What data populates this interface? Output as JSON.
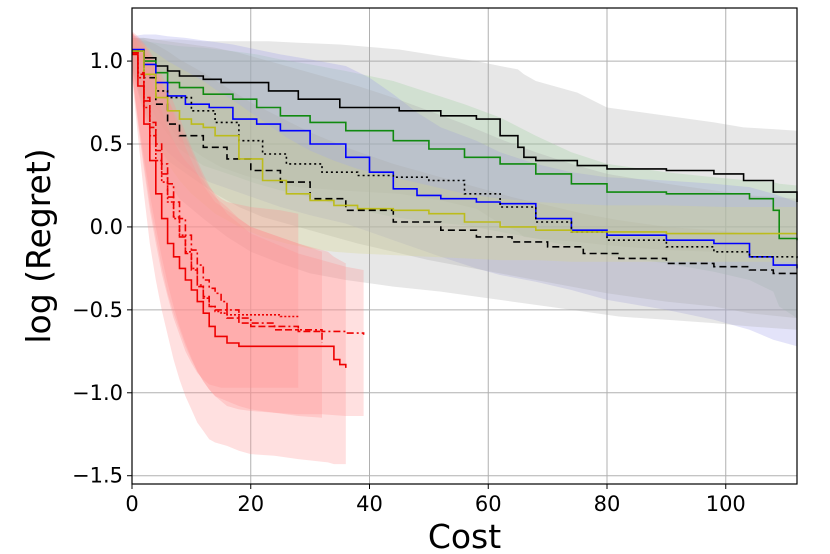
{
  "chart_data": {
    "type": "line",
    "title": "",
    "xlabel": "Cost",
    "ylabel": "log (Regret)",
    "xlim": [
      0,
      112
    ],
    "ylim": [
      -1.55,
      1.32
    ],
    "xticks": [
      0,
      20,
      40,
      60,
      80,
      100
    ],
    "yticks": [
      1.0,
      0.5,
      0.0,
      -0.5,
      -1.0,
      -1.5
    ],
    "xtick_labels": [
      "0",
      "20",
      "40",
      "60",
      "80",
      "100"
    ],
    "ytick_labels": [
      "1.0",
      "0.5",
      "0.0",
      "−0.5",
      "−1.0",
      "−1.5"
    ],
    "grid": true,
    "series": [
      {
        "name": "black-solid",
        "color": "#000000",
        "dash": "solid",
        "band_color": "#a8a8a8",
        "x": [
          0,
          2,
          4,
          6,
          8,
          12,
          15,
          19,
          23,
          28,
          35,
          45,
          52,
          58,
          62,
          65,
          66,
          68,
          75,
          80,
          90,
          98,
          103,
          108,
          112
        ],
        "y": [
          1.06,
          1.02,
          0.97,
          0.94,
          0.91,
          0.89,
          0.87,
          0.87,
          0.82,
          0.77,
          0.72,
          0.7,
          0.67,
          0.65,
          0.55,
          0.48,
          0.42,
          0.4,
          0.37,
          0.35,
          0.34,
          0.32,
          0.28,
          0.21,
          0.15
        ],
        "lower": [
          0.97,
          0.85,
          0.72,
          0.62,
          0.52,
          0.42,
          0.36,
          0.31,
          0.27,
          0.24,
          0.22,
          0.2,
          0.16,
          0.11,
          0.02,
          -0.03,
          -0.06,
          -0.07,
          -0.09,
          -0.11,
          -0.14,
          -0.15,
          -0.16,
          -0.17,
          -0.18
        ],
        "upper": [
          1.14,
          1.14,
          1.13,
          1.13,
          1.13,
          1.12,
          1.12,
          1.12,
          1.12,
          1.11,
          1.1,
          1.07,
          1.03,
          1.0,
          0.97,
          0.95,
          0.92,
          0.88,
          0.81,
          0.72,
          0.67,
          0.63,
          0.6,
          0.59,
          0.58
        ]
      },
      {
        "name": "green-solid",
        "color": "#108a10",
        "dash": "solid",
        "band_color": "#9acf9a",
        "x": [
          0,
          2,
          4,
          6,
          8,
          12,
          17,
          21,
          25,
          30,
          36,
          44,
          50,
          56,
          62,
          68,
          74,
          80,
          90,
          98,
          104,
          108,
          109,
          112
        ],
        "y": [
          1.06,
          1.0,
          0.93,
          0.87,
          0.84,
          0.8,
          0.77,
          0.72,
          0.67,
          0.63,
          0.58,
          0.52,
          0.47,
          0.42,
          0.38,
          0.32,
          0.26,
          0.21,
          0.2,
          0.2,
          0.17,
          0.1,
          -0.07,
          -0.08
        ],
        "lower": [
          0.96,
          0.82,
          0.66,
          0.56,
          0.47,
          0.37,
          0.31,
          0.26,
          0.22,
          0.18,
          0.12,
          0.06,
          0.03,
          0.01,
          -0.03,
          -0.07,
          -0.12,
          -0.17,
          -0.22,
          -0.27,
          -0.32,
          -0.39,
          -0.48,
          -0.55
        ],
        "upper": [
          1.13,
          1.12,
          1.11,
          1.1,
          1.09,
          1.08,
          1.06,
          1.04,
          1.01,
          0.98,
          0.94,
          0.88,
          0.81,
          0.74,
          0.66,
          0.55,
          0.45,
          0.38,
          0.33,
          0.3,
          0.28,
          0.27,
          0.26,
          0.25
        ]
      },
      {
        "name": "blue-solid",
        "color": "#0000ff",
        "dash": "solid",
        "band_color": "#9c9ce8",
        "x": [
          0,
          2,
          4,
          6,
          9,
          13,
          17,
          21,
          25,
          30,
          36,
          40,
          44,
          48,
          52,
          58,
          62,
          68,
          74,
          80,
          90,
          98,
          104,
          108,
          112
        ],
        "y": [
          1.07,
          0.98,
          0.87,
          0.79,
          0.74,
          0.72,
          0.65,
          0.62,
          0.58,
          0.5,
          0.42,
          0.33,
          0.23,
          0.19,
          0.17,
          0.15,
          0.14,
          0.05,
          -0.02,
          -0.05,
          -0.08,
          -0.1,
          -0.18,
          -0.23,
          -0.25
        ],
        "lower": [
          0.96,
          0.74,
          0.55,
          0.45,
          0.36,
          0.27,
          0.22,
          0.17,
          0.12,
          0.07,
          0.02,
          -0.03,
          -0.08,
          -0.13,
          -0.18,
          -0.25,
          -0.29,
          -0.33,
          -0.38,
          -0.44,
          -0.5,
          -0.56,
          -0.62,
          -0.68,
          -0.72
        ],
        "upper": [
          1.15,
          1.16,
          1.16,
          1.15,
          1.14,
          1.12,
          1.1,
          1.07,
          1.04,
          1.01,
          0.97,
          0.9,
          0.8,
          0.69,
          0.6,
          0.52,
          0.45,
          0.38,
          0.33,
          0.3,
          0.28,
          0.26,
          0.24,
          0.2,
          0.15
        ]
      },
      {
        "name": "black-dotted",
        "color": "#000000",
        "dash": "2,3",
        "band_color": "#a8a8a8",
        "x": [
          0,
          2,
          4,
          6,
          10,
          14,
          18,
          22,
          26,
          32,
          38,
          44,
          50,
          56,
          62,
          68,
          74,
          80,
          90,
          98,
          104,
          112
        ],
        "y": [
          1.06,
          0.92,
          0.82,
          0.78,
          0.7,
          0.63,
          0.52,
          0.44,
          0.38,
          0.33,
          0.31,
          0.3,
          0.28,
          0.2,
          0.12,
          0.03,
          -0.03,
          -0.08,
          -0.12,
          -0.15,
          -0.18,
          -0.2
        ],
        "lower": [
          0.95,
          0.7,
          0.52,
          0.4,
          0.3,
          0.2,
          0.12,
          0.06,
          0.02,
          -0.04,
          -0.1,
          -0.15,
          -0.2,
          -0.24,
          -0.28,
          -0.32,
          -0.36,
          -0.4,
          -0.45,
          -0.48,
          -0.52,
          -0.55
        ],
        "upper": [
          1.14,
          1.14,
          1.13,
          1.12,
          1.1,
          1.08,
          1.05,
          1.01,
          0.97,
          0.91,
          0.85,
          0.78,
          0.7,
          0.62,
          0.53,
          0.45,
          0.38,
          0.32,
          0.26,
          0.22,
          0.19,
          0.17
        ]
      },
      {
        "name": "black-dashed",
        "color": "#000000",
        "dash": "7,4",
        "band_color": "#a8a8a8",
        "x": [
          0,
          2,
          4,
          6,
          8,
          12,
          16,
          20,
          25,
          30,
          36,
          44,
          52,
          58,
          64,
          70,
          76,
          82,
          90,
          98,
          104,
          108,
          112
        ],
        "y": [
          1.06,
          0.9,
          0.74,
          0.62,
          0.55,
          0.48,
          0.41,
          0.34,
          0.27,
          0.17,
          0.1,
          0.03,
          -0.02,
          -0.06,
          -0.09,
          -0.12,
          -0.16,
          -0.19,
          -0.22,
          -0.24,
          -0.26,
          -0.28,
          -0.28
        ],
        "lower": [
          0.94,
          0.68,
          0.44,
          0.28,
          0.17,
          0.05,
          -0.06,
          -0.15,
          -0.22,
          -0.28,
          -0.32,
          -0.36,
          -0.39,
          -0.42,
          -0.45,
          -0.48,
          -0.51,
          -0.54,
          -0.56,
          -0.58,
          -0.6,
          -0.61,
          -0.62
        ],
        "upper": [
          1.14,
          1.13,
          1.1,
          1.06,
          1.01,
          0.93,
          0.84,
          0.75,
          0.66,
          0.57,
          0.48,
          0.38,
          0.3,
          0.24,
          0.18,
          0.13,
          0.08,
          0.04,
          0.0,
          -0.02,
          -0.04,
          -0.05,
          -0.06
        ]
      },
      {
        "name": "yellow-solid",
        "color": "#bcbc1c",
        "dash": "solid",
        "band_color": "#d6d68a",
        "x": [
          0,
          2,
          4,
          6,
          8,
          10,
          12,
          14,
          18,
          22,
          26,
          30,
          34,
          38,
          44,
          50,
          56,
          62,
          68,
          74,
          80,
          90,
          100,
          112
        ],
        "y": [
          1.06,
          0.92,
          0.78,
          0.7,
          0.65,
          0.62,
          0.6,
          0.55,
          0.41,
          0.28,
          0.2,
          0.16,
          0.13,
          0.11,
          0.1,
          0.08,
          0.03,
          0.0,
          -0.02,
          -0.03,
          -0.03,
          -0.04,
          -0.04,
          -0.04
        ],
        "lower": [
          0.95,
          0.72,
          0.52,
          0.38,
          0.28,
          0.2,
          0.14,
          0.08,
          0.0,
          -0.06,
          -0.1,
          -0.13,
          -0.15,
          -0.16,
          -0.17,
          -0.18,
          -0.19,
          -0.2,
          -0.2,
          -0.21,
          -0.21,
          -0.21,
          -0.21,
          -0.21
        ],
        "upper": [
          1.14,
          1.1,
          1.05,
          1.0,
          0.96,
          0.92,
          0.88,
          0.83,
          0.74,
          0.64,
          0.54,
          0.46,
          0.4,
          0.35,
          0.3,
          0.25,
          0.2,
          0.17,
          0.15,
          0.14,
          0.13,
          0.13,
          0.12,
          0.12
        ]
      },
      {
        "name": "red-solid",
        "color": "#ee0000",
        "dash": "solid",
        "band_color": "#ff8e8e",
        "x": [
          0,
          1,
          2,
          3,
          4,
          5,
          6,
          7,
          8,
          9,
          10,
          11,
          12,
          13,
          14,
          16,
          18,
          20,
          24,
          28,
          33,
          34,
          35,
          36
        ],
        "y": [
          1.04,
          0.85,
          0.62,
          0.4,
          0.2,
          0.05,
          -0.1,
          -0.18,
          -0.25,
          -0.32,
          -0.38,
          -0.45,
          -0.52,
          -0.6,
          -0.66,
          -0.7,
          -0.72,
          -0.72,
          -0.72,
          -0.72,
          -0.72,
          -0.8,
          -0.83,
          -0.85
        ],
        "lower": [
          0.9,
          0.55,
          0.2,
          -0.1,
          -0.32,
          -0.5,
          -0.65,
          -0.8,
          -0.92,
          -1.02,
          -1.1,
          -1.18,
          -1.23,
          -1.28,
          -1.3,
          -1.32,
          -1.35,
          -1.37,
          -1.38,
          -1.4,
          -1.42,
          -1.43,
          -1.43,
          -1.43
        ],
        "upper": [
          1.18,
          1.1,
          1.0,
          0.9,
          0.8,
          0.7,
          0.6,
          0.52,
          0.45,
          0.4,
          0.36,
          0.32,
          0.28,
          0.22,
          0.18,
          0.12,
          0.05,
          0.0,
          -0.05,
          -0.1,
          -0.15,
          -0.18,
          -0.2,
          -0.22
        ]
      },
      {
        "name": "red-dotted",
        "color": "#ee0000",
        "dash": "2,2",
        "band_color": "#ff8e8e",
        "x": [
          0,
          1,
          2,
          3,
          4,
          5,
          6,
          7,
          8,
          9,
          10,
          11,
          12,
          13,
          14,
          15,
          16,
          20,
          25,
          28
        ],
        "y": [
          1.05,
          0.9,
          0.72,
          0.55,
          0.4,
          0.27,
          0.15,
          0.05,
          -0.05,
          -0.15,
          -0.25,
          -0.35,
          -0.43,
          -0.48,
          -0.51,
          -0.52,
          -0.53,
          -0.53,
          -0.54,
          -0.55
        ],
        "lower": [
          0.92,
          0.62,
          0.35,
          0.1,
          -0.1,
          -0.28,
          -0.42,
          -0.55,
          -0.65,
          -0.75,
          -0.82,
          -0.88,
          -0.92,
          -0.95,
          -0.96,
          -0.97,
          -0.97,
          -0.97,
          -0.97,
          -0.97
        ],
        "upper": [
          1.17,
          1.13,
          1.08,
          1.01,
          0.94,
          0.86,
          0.78,
          0.7,
          0.62,
          0.54,
          0.46,
          0.38,
          0.3,
          0.24,
          0.2,
          0.17,
          0.15,
          0.12,
          0.1,
          0.08
        ]
      },
      {
        "name": "red-dashed",
        "color": "#ee0000",
        "dash": "7,3",
        "band_color": "#ff8e8e",
        "x": [
          0,
          1,
          2,
          3,
          4,
          5,
          6,
          7,
          8,
          9,
          10,
          11,
          12,
          13,
          14,
          16,
          18,
          20,
          24,
          28,
          32
        ],
        "y": [
          1.05,
          0.92,
          0.76,
          0.6,
          0.46,
          0.32,
          0.18,
          0.06,
          -0.06,
          -0.16,
          -0.26,
          -0.36,
          -0.42,
          -0.48,
          -0.5,
          -0.55,
          -0.58,
          -0.6,
          -0.62,
          -0.63,
          -0.7
        ],
        "lower": [
          0.92,
          0.64,
          0.38,
          0.14,
          -0.06,
          -0.24,
          -0.4,
          -0.52,
          -0.62,
          -0.72,
          -0.8,
          -0.87,
          -0.93,
          -0.98,
          -1.02,
          -1.05,
          -1.08,
          -1.1,
          -1.12,
          -1.14,
          -1.15
        ],
        "upper": [
          1.17,
          1.14,
          1.1,
          1.04,
          0.97,
          0.88,
          0.78,
          0.68,
          0.58,
          0.48,
          0.4,
          0.32,
          0.25,
          0.2,
          0.15,
          0.1,
          0.05,
          0.0,
          -0.05,
          -0.1,
          -0.15
        ]
      },
      {
        "name": "red-dashdot",
        "color": "#ee0000",
        "dash": "7,3,2,3",
        "band_color": "#ff8e8e",
        "x": [
          0,
          1,
          2,
          3,
          4,
          5,
          6,
          7,
          8,
          9,
          10,
          11,
          12,
          13,
          14,
          15,
          16,
          18,
          20,
          24,
          28,
          32,
          36,
          39
        ],
        "y": [
          1.05,
          0.93,
          0.78,
          0.63,
          0.5,
          0.38,
          0.26,
          0.15,
          0.05,
          -0.05,
          -0.14,
          -0.23,
          -0.32,
          -0.37,
          -0.4,
          -0.45,
          -0.5,
          -0.55,
          -0.58,
          -0.6,
          -0.62,
          -0.63,
          -0.64,
          -0.65
        ],
        "lower": [
          0.93,
          0.66,
          0.42,
          0.2,
          0.0,
          -0.18,
          -0.34,
          -0.48,
          -0.6,
          -0.7,
          -0.79,
          -0.87,
          -0.93,
          -0.98,
          -1.02,
          -1.05,
          -1.08,
          -1.1,
          -1.11,
          -1.12,
          -1.13,
          -1.13,
          -1.14,
          -1.14
        ],
        "upper": [
          1.18,
          1.15,
          1.11,
          1.06,
          1.0,
          0.92,
          0.84,
          0.75,
          0.66,
          0.57,
          0.48,
          0.4,
          0.32,
          0.25,
          0.19,
          0.13,
          0.08,
          0.02,
          -0.04,
          -0.1,
          -0.16,
          -0.2,
          -0.24,
          -0.26
        ]
      }
    ]
  }
}
